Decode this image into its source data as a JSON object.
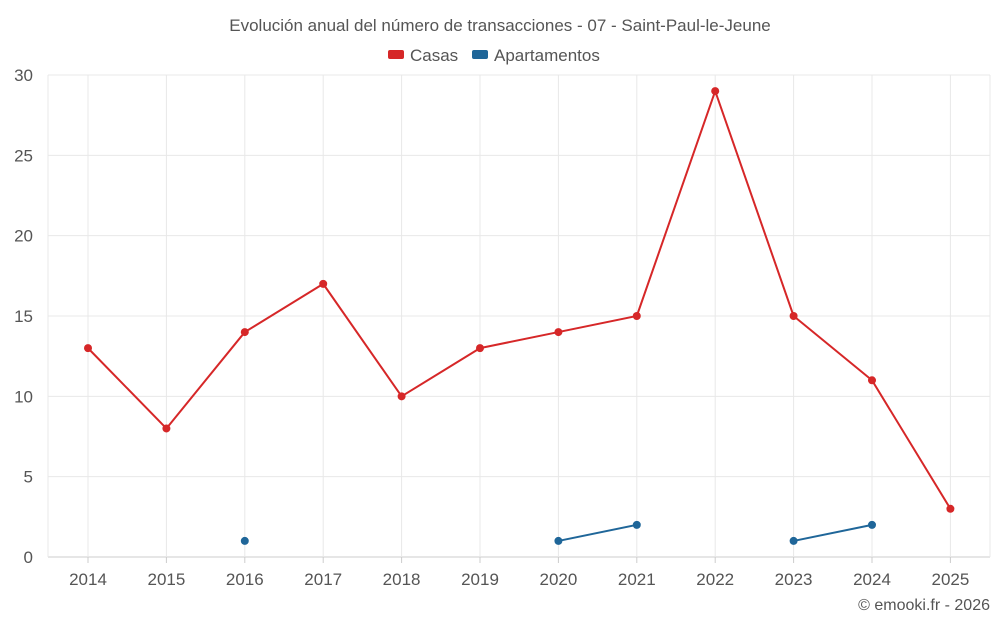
{
  "chart_data": {
    "type": "line",
    "title": "Evolución anual del número de transacciones - 07 - Saint-Paul-le-Jeune",
    "categories": [
      "2014",
      "2015",
      "2016",
      "2017",
      "2018",
      "2019",
      "2020",
      "2021",
      "2022",
      "2023",
      "2024",
      "2025"
    ],
    "series": [
      {
        "name": "Casas",
        "color": "#d62728",
        "values": [
          13,
          8,
          14,
          17,
          10,
          13,
          14,
          15,
          29,
          15,
          11,
          3
        ]
      },
      {
        "name": "Apartamentos",
        "color": "#1f6699",
        "values": [
          null,
          null,
          1,
          null,
          null,
          null,
          1,
          2,
          null,
          1,
          2,
          null
        ]
      }
    ],
    "yticks": [
      "0",
      "5",
      "10",
      "15",
      "20",
      "25",
      "30"
    ],
    "ylim": [
      0,
      30
    ],
    "xlabel": "",
    "ylabel": "",
    "grid": true,
    "legend_position": "top-center"
  },
  "credit": "© emooki.fr - 2026"
}
